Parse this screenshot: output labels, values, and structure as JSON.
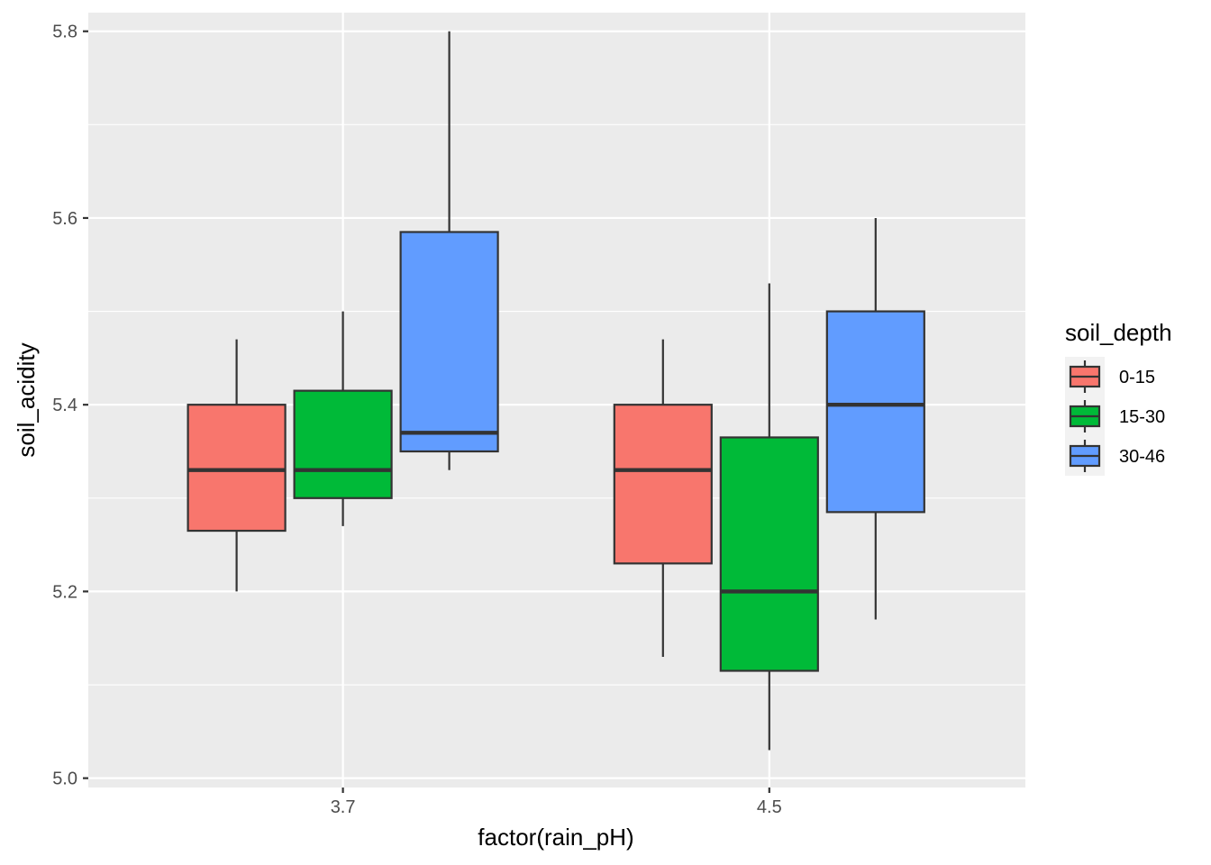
{
  "chart_data": {
    "type": "boxplot",
    "xlabel": "factor(rain_pH)",
    "ylabel": "soil_acidity",
    "categories": [
      "3.7",
      "4.5"
    ],
    "ylim": [
      4.99,
      5.82
    ],
    "y_ticks": [
      "5.0",
      "5.2",
      "5.4",
      "5.6",
      "5.8"
    ],
    "grid": true,
    "legend": {
      "title": "soil_depth",
      "position": "right"
    },
    "series": [
      {
        "name": "0-15",
        "color": "#F8766D",
        "boxes": [
          {
            "category": "3.7",
            "whisker_low": 5.2,
            "q1": 5.265,
            "median": 5.33,
            "q3": 5.4,
            "whisker_high": 5.47
          },
          {
            "category": "4.5",
            "whisker_low": 5.13,
            "q1": 5.23,
            "median": 5.33,
            "q3": 5.4,
            "whisker_high": 5.47
          }
        ]
      },
      {
        "name": "15-30",
        "color": "#00BA38",
        "boxes": [
          {
            "category": "3.7",
            "whisker_low": 5.27,
            "q1": 5.3,
            "median": 5.33,
            "q3": 5.415,
            "whisker_high": 5.5
          },
          {
            "category": "4.5",
            "whisker_low": 5.03,
            "q1": 5.115,
            "median": 5.2,
            "q3": 5.365,
            "whisker_high": 5.53
          }
        ]
      },
      {
        "name": "30-46",
        "color": "#619CFF",
        "boxes": [
          {
            "category": "3.7",
            "whisker_low": 5.33,
            "q1": 5.35,
            "median": 5.37,
            "q3": 5.585,
            "whisker_high": 5.8
          },
          {
            "category": "4.5",
            "whisker_low": 5.17,
            "q1": 5.285,
            "median": 5.4,
            "q3": 5.5,
            "whisker_high": 5.6
          }
        ]
      }
    ]
  }
}
